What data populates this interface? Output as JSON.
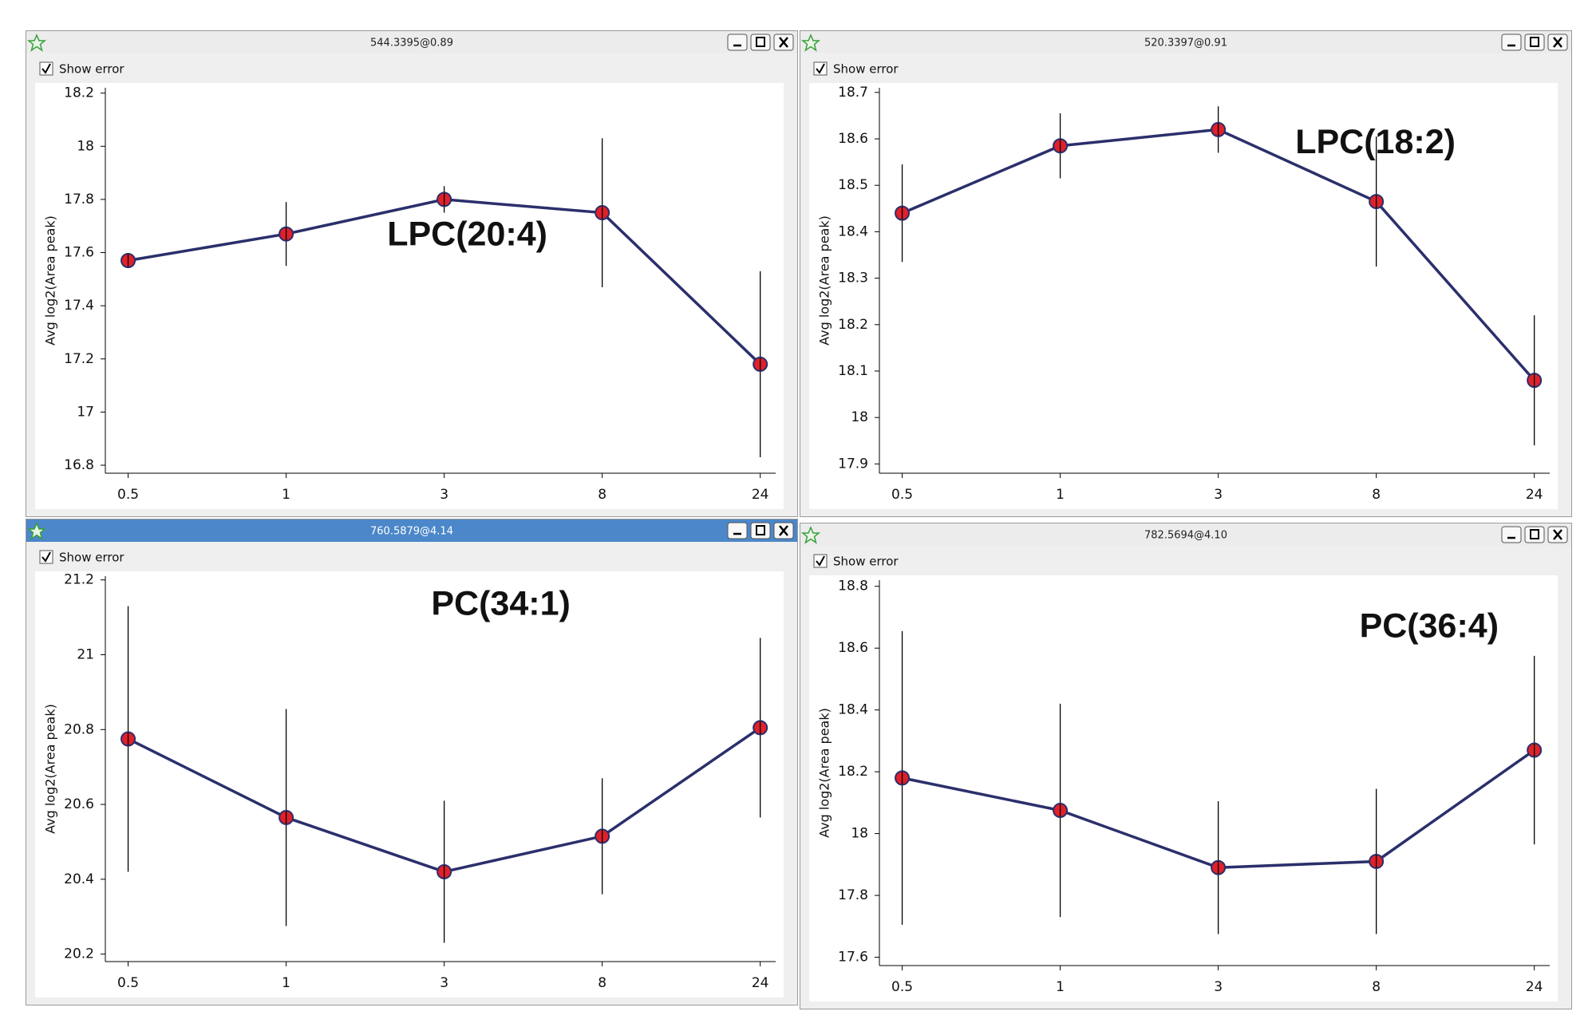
{
  "windows": [
    {
      "title": "544.3395@0.89",
      "checkbox_label": "Show error",
      "checked": true,
      "active": false
    },
    {
      "title": "520.3397@0.91",
      "checkbox_label": "Show error",
      "checked": true,
      "active": false
    },
    {
      "title": "760.5879@4.14",
      "checkbox_label": "Show error",
      "checked": true,
      "active": true
    },
    {
      "title": "782.5694@4.10",
      "checkbox_label": "Show error",
      "checked": true,
      "active": false
    }
  ],
  "chart_data": [
    {
      "type": "line",
      "annotation": "LPC(20:4)",
      "ylabel": "Avg log2(Area peak)",
      "categories": [
        "0.5",
        "1",
        "3",
        "8",
        "24"
      ],
      "series": [
        {
          "values": [
            17.57,
            17.67,
            17.8,
            17.75,
            17.18
          ],
          "errors": [
            0.02,
            0.12,
            0.05,
            0.28,
            0.35
          ],
          "color": "#2b2f6b",
          "marker_color": "#e0202a"
        }
      ],
      "ylim": [
        16.77,
        18.22
      ],
      "yticks": [
        16.8,
        17,
        17.2,
        17.4,
        17.6,
        17.8,
        18,
        18.2
      ]
    },
    {
      "type": "line",
      "annotation": "LPC(18:2)",
      "ylabel": "Avg log2(Area peak)",
      "categories": [
        "0.5",
        "1",
        "3",
        "8",
        "24"
      ],
      "series": [
        {
          "values": [
            18.44,
            18.585,
            18.62,
            18.465,
            18.08
          ],
          "errors": [
            0.105,
            0.07,
            0.05,
            0.14,
            0.14
          ],
          "color": "#2b2f6b",
          "marker_color": "#e0202a"
        }
      ],
      "ylim": [
        17.88,
        18.71
      ],
      "yticks": [
        17.9,
        18,
        18.1,
        18.2,
        18.3,
        18.4,
        18.5,
        18.6,
        18.7
      ]
    },
    {
      "type": "line",
      "annotation": "PC(34:1)",
      "ylabel": "Avg log2(Area peak)",
      "categories": [
        "0.5",
        "1",
        "3",
        "8",
        "24"
      ],
      "series": [
        {
          "values": [
            20.775,
            20.565,
            20.42,
            20.515,
            20.805
          ],
          "errors": [
            0.355,
            0.29,
            0.19,
            0.155,
            0.24
          ],
          "color": "#2b2f6b",
          "marker_color": "#e0202a"
        }
      ],
      "ylim": [
        20.18,
        21.21
      ],
      "yticks": [
        20.2,
        20.4,
        20.6,
        20.8,
        21,
        21.2
      ]
    },
    {
      "type": "line",
      "annotation": "PC(36:4)",
      "ylabel": "Avg log2(Area peak)",
      "categories": [
        "0.5",
        "1",
        "3",
        "8",
        "24"
      ],
      "series": [
        {
          "values": [
            18.18,
            18.075,
            17.89,
            17.91,
            18.27
          ],
          "errors": [
            0.475,
            0.345,
            0.215,
            0.235,
            0.305
          ],
          "color": "#2b2f6b",
          "marker_color": "#e0202a"
        }
      ],
      "ylim": [
        17.573,
        18.82
      ],
      "yticks": [
        17.6,
        17.8,
        18,
        18.2,
        18.4,
        18.6,
        18.8
      ]
    }
  ]
}
